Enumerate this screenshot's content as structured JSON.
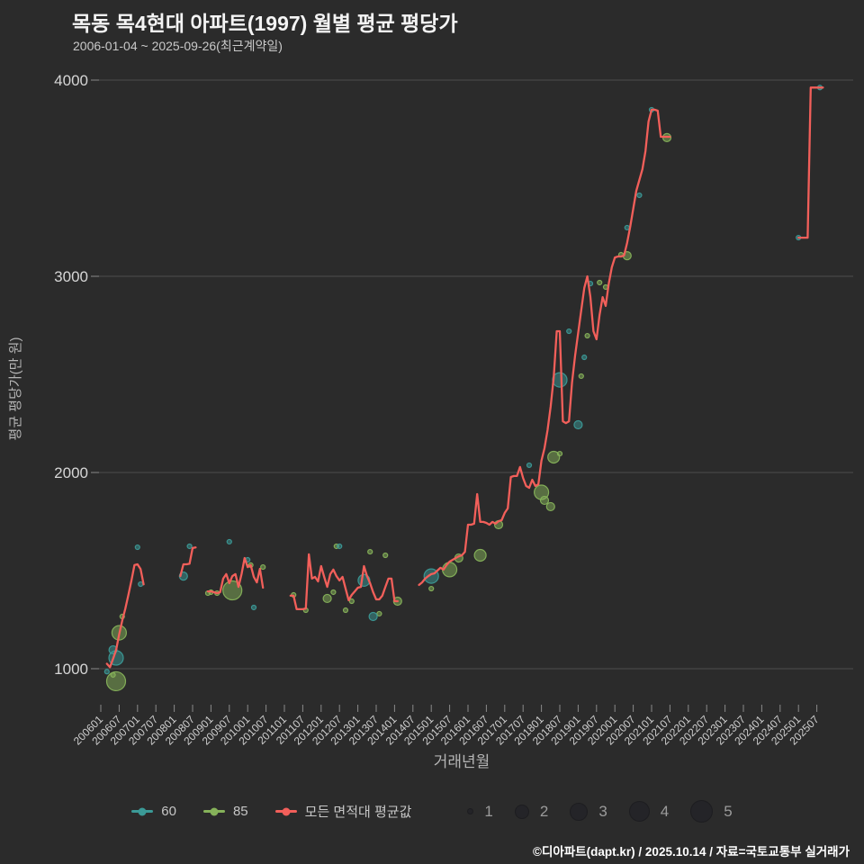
{
  "header": {
    "title": "목동 목4현대 아파트(1997) 월별 평균 평당가",
    "subtitle": "2006-01-04 ~ 2025-09-26(최근계약일)"
  },
  "footer": {
    "text": "©디아파트(dapt.kr) / 2025.10.14 / 자료=국토교통부 실거래가"
  },
  "chart_data": {
    "type": "line",
    "title": "목동 목4현대 아파트(1997) 월별 평균 평당가",
    "xlabel": "거래년월",
    "ylabel": "평균 평당가(만 원)",
    "ylim": [
      800,
      4100
    ],
    "yticks": [
      1000,
      2000,
      3000,
      4000
    ],
    "grid": "horizontal",
    "legend_position": "bottom",
    "x_ticks": [
      "200601",
      "200607",
      "200701",
      "200707",
      "200801",
      "200807",
      "200901",
      "200907",
      "201001",
      "201007",
      "201101",
      "201107",
      "201201",
      "201207",
      "201301",
      "201307",
      "201401",
      "201407",
      "201501",
      "201507",
      "201601",
      "201607",
      "201701",
      "201707",
      "201801",
      "201807",
      "201901",
      "201907",
      "202001",
      "202007",
      "202101",
      "202107",
      "202201",
      "202207",
      "202301",
      "202307",
      "202401",
      "202407",
      "202501",
      "202507"
    ],
    "x_range": [
      "2006-01",
      "2025-09"
    ],
    "colors": {
      "series60": "#3b9a97",
      "series85": "#86b25a",
      "avg_line": "#f25f5a",
      "background": "#2b2b2b",
      "gridline": "#4d4d4d"
    },
    "line_series": {
      "name": "모든 면적대 평균값",
      "color": "#f25f5a",
      "unit": "만 원/평",
      "segments": [
        {
          "start": "2006-03",
          "values": [
            1025,
            1008,
            1050,
            1095,
            1175,
            1245,
            1305,
            1375,
            1448,
            1528,
            1532,
            1508,
            1430
          ]
        },
        {
          "start": "2008-03",
          "values": [
            1472,
            1532,
            1532,
            1535,
            1615,
            1618
          ]
        },
        {
          "start": "2008-12",
          "values": [
            1394,
            1394,
            1390,
            1385,
            1390,
            1459,
            1482,
            1436,
            1472,
            1482,
            1417,
            1482,
            1564,
            1518,
            1528,
            1468,
            1440,
            1509,
            1413
          ]
        },
        {
          "start": "2011-03",
          "values": [
            1372,
            1372,
            1303,
            1303,
            1303,
            1307,
            1583,
            1459,
            1468,
            1445,
            1523,
            1468,
            1417,
            1482,
            1505,
            1472,
            1450,
            1468,
            1408,
            1349,
            1376,
            1394,
            1413,
            1417,
            1523,
            1472,
            1436,
            1390,
            1353,
            1353,
            1372,
            1417,
            1459,
            1459,
            1344,
            1344
          ]
        },
        {
          "start": "2014-09",
          "values": [
            1427,
            1440,
            1459,
            1472,
            1482,
            1486,
            1500,
            1514,
            1505,
            1528,
            1546,
            1555,
            1564,
            1573,
            1578,
            1596,
            1734,
            1734,
            1739,
            1890,
            1748,
            1748,
            1743,
            1734,
            1748,
            1739,
            1752,
            1757,
            1794,
            1817,
            1977,
            1982,
            1982,
            2028,
            1972,
            1931,
            1922,
            1963,
            1931,
            1940,
            2060,
            2124,
            2216,
            2335,
            2482,
            2720,
            2720,
            2261,
            2252,
            2261,
            2459,
            2596,
            2711,
            2826,
            2940,
            3000,
            2894,
            2720,
            2679,
            2803,
            2894,
            2849,
            2963,
            3046,
            3096,
            3101,
            3101,
            3106,
            3170,
            3252,
            3344,
            3436,
            3491,
            3546,
            3638,
            3789,
            3849,
            3849,
            3844,
            3711,
            3711,
            3711,
            3711
          ]
        },
        {
          "start": "2025-01",
          "values": [
            3197,
            3197,
            3197,
            3197,
            3962,
            3962,
            3962,
            3962,
            3962
          ]
        }
      ]
    },
    "scatter_series": [
      {
        "name": "60",
        "color": "#3b9a97",
        "points_format": [
          "month",
          "price_per_pyeong",
          "bubble_size"
        ],
        "points": [
          [
            "2006-03",
            985,
            1
          ],
          [
            "2006-05",
            1096,
            2
          ],
          [
            "2006-06",
            1055,
            4
          ],
          [
            "2007-01",
            1619,
            1
          ],
          [
            "2007-02",
            1431,
            1
          ],
          [
            "2008-04",
            1472,
            2
          ],
          [
            "2008-06",
            1624,
            1
          ],
          [
            "2009-07",
            1647,
            1
          ],
          [
            "2010-01",
            1555,
            1
          ],
          [
            "2010-03",
            1312,
            1
          ],
          [
            "2012-07",
            1624,
            1
          ],
          [
            "2013-03",
            1450,
            3
          ],
          [
            "2013-06",
            1266,
            2
          ],
          [
            "2015-01",
            1472,
            4
          ],
          [
            "2017-09",
            2037,
            1
          ],
          [
            "2018-07",
            2472,
            4
          ],
          [
            "2018-10",
            2720,
            1
          ],
          [
            "2019-01",
            2243,
            2
          ],
          [
            "2019-03",
            2587,
            1
          ],
          [
            "2019-05",
            2963,
            1
          ],
          [
            "2020-05",
            3248,
            1
          ],
          [
            "2020-09",
            3413,
            1
          ],
          [
            "2021-01",
            3849,
            1
          ],
          [
            "2025-01",
            3197,
            1
          ],
          [
            "2025-08",
            3962,
            1
          ]
        ]
      },
      {
        "name": "85",
        "color": "#86b25a",
        "points_format": [
          "month",
          "price_per_pyeong",
          "bubble_size"
        ],
        "points": [
          [
            "2006-05",
            968,
            1
          ],
          [
            "2006-06",
            936,
            5
          ],
          [
            "2006-07",
            1183,
            4
          ],
          [
            "2006-08",
            1266,
            1
          ],
          [
            "2008-12",
            1385,
            1
          ],
          [
            "2009-01",
            1390,
            1
          ],
          [
            "2009-03",
            1385,
            1
          ],
          [
            "2009-08",
            1399,
            5
          ],
          [
            "2010-02",
            1528,
            1
          ],
          [
            "2010-06",
            1518,
            1
          ],
          [
            "2011-04",
            1376,
            1
          ],
          [
            "2011-08",
            1298,
            1
          ],
          [
            "2012-03",
            1358,
            2
          ],
          [
            "2012-05",
            1390,
            1
          ],
          [
            "2012-06",
            1624,
            1
          ],
          [
            "2012-09",
            1298,
            1
          ],
          [
            "2012-11",
            1344,
            1
          ],
          [
            "2013-05",
            1596,
            1
          ],
          [
            "2013-08",
            1280,
            1
          ],
          [
            "2013-10",
            1578,
            1
          ],
          [
            "2014-02",
            1344,
            2
          ],
          [
            "2015-01",
            1408,
            1
          ],
          [
            "2015-07",
            1505,
            4
          ],
          [
            "2015-10",
            1564,
            2
          ],
          [
            "2016-05",
            1578,
            3
          ],
          [
            "2016-11",
            1734,
            2
          ],
          [
            "2018-01",
            1899,
            4
          ],
          [
            "2018-02",
            1858,
            2
          ],
          [
            "2018-04",
            1826,
            2
          ],
          [
            "2018-05",
            2078,
            3
          ],
          [
            "2018-07",
            2096,
            1
          ],
          [
            "2019-02",
            2491,
            1
          ],
          [
            "2019-04",
            2697,
            1
          ],
          [
            "2019-08",
            2968,
            1
          ],
          [
            "2019-10",
            2945,
            1
          ],
          [
            "2020-03",
            3110,
            1
          ],
          [
            "2020-05",
            3105,
            2
          ],
          [
            "2021-06",
            3707,
            2
          ]
        ]
      }
    ],
    "size_legend": [
      1,
      2,
      3,
      4,
      5
    ]
  }
}
